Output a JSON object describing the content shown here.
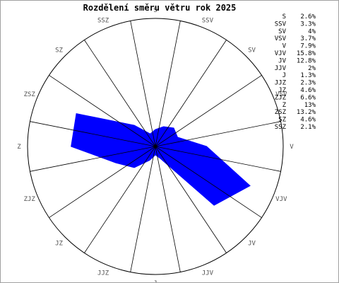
{
  "chart_data": {
    "type": "polar-area",
    "title": "Rozdělení směru větru rok 2025",
    "unit": "%",
    "directions": [
      "S",
      "SSV",
      "SV",
      "VSV",
      "V",
      "VJV",
      "JV",
      "JJV",
      "J",
      "JJZ",
      "JZ",
      "ZJZ",
      "Z",
      "ZSZ",
      "SZ",
      "SSZ"
    ],
    "values": [
      2.6,
      3.3,
      4,
      3.7,
      7.9,
      15.8,
      12.8,
      2,
      1.3,
      2.3,
      4.6,
      6.6,
      13,
      13.2,
      4.6,
      2.1
    ],
    "legend_values": [
      "2.6%",
      "3.3%",
      "4%",
      "3.7%",
      "7.9%",
      "15.8%",
      "12.8%",
      "2%",
      "1.3%",
      "2.3%",
      "4.6%",
      "6.6%",
      "13%",
      "13.2%",
      "4.6%",
      "2.1%"
    ],
    "legend_position": "top-right",
    "fill_color": "#0000ff",
    "grid_color": "#000000",
    "label_color": "#505050"
  }
}
